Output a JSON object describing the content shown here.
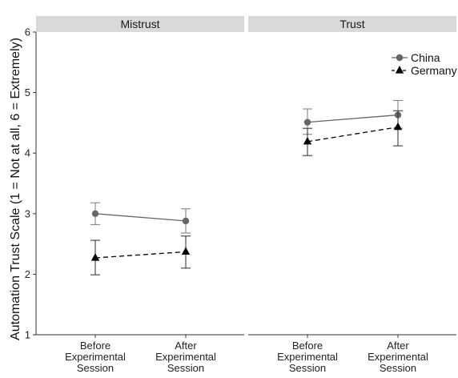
{
  "chart_data": {
    "type": "line",
    "ylabel": "Automation Trust Scale (1 = Not at all, 6 = Extremely)",
    "ylim": [
      1,
      6
    ],
    "yticks": [
      "1",
      "2",
      "3",
      "4",
      "5",
      "6"
    ],
    "categories": [
      [
        "Before",
        "Experimental",
        "Session"
      ],
      [
        "After",
        "Experimental",
        "Session"
      ]
    ],
    "legend_position": "top-right",
    "grid": false,
    "panels": [
      {
        "title": "Mistrust",
        "series": [
          {
            "name": "China",
            "values": [
              3.0,
              2.88
            ],
            "error_low": [
              2.82,
              2.68
            ],
            "error_high": [
              3.18,
              3.08
            ]
          },
          {
            "name": "Germany",
            "values": [
              2.27,
              2.37
            ],
            "error_low": [
              1.99,
              2.1
            ],
            "error_high": [
              2.56,
              2.63
            ]
          }
        ]
      },
      {
        "title": "Trust",
        "series": [
          {
            "name": "China",
            "values": [
              4.51,
              4.63
            ],
            "error_low": [
              4.31,
              4.41
            ],
            "error_high": [
              4.73,
              4.87
            ]
          },
          {
            "name": "Germany",
            "values": [
              4.19,
              4.43
            ],
            "error_low": [
              3.96,
              4.12
            ],
            "error_high": [
              4.41,
              4.7
            ]
          }
        ]
      }
    ],
    "legend": [
      {
        "name": "China",
        "marker": "circle",
        "line": "solid",
        "color": "#666666"
      },
      {
        "name": "Germany",
        "marker": "triangle",
        "line": "dashed",
        "color": "#000000"
      }
    ]
  }
}
